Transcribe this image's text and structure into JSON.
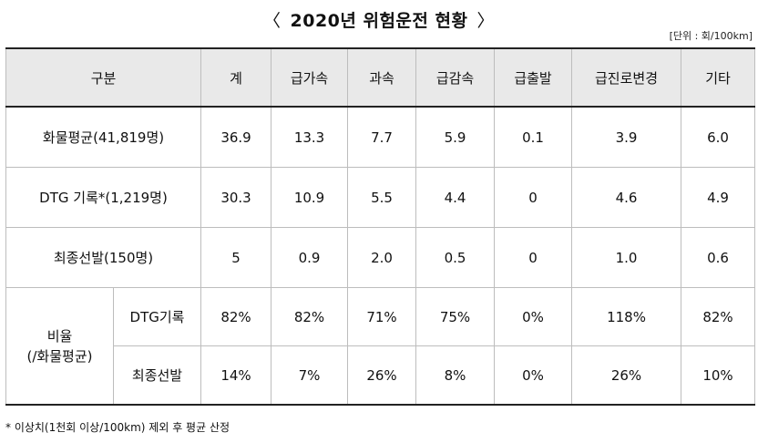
{
  "title": {
    "left_bracket": "〈",
    "text": "2020년 위험운전 현황",
    "right_bracket": "〉"
  },
  "unit": "[단위 : 회/100km]",
  "table": {
    "headers": [
      "구분",
      "계",
      "급가속",
      "과속",
      "급감속",
      "급출발",
      "급진로변경",
      "기타"
    ],
    "rows": [
      {
        "label": "화물평균(41,819명)",
        "values": [
          "36.9",
          "13.3",
          "7.7",
          "5.9",
          "0.1",
          "3.9",
          "6.0"
        ]
      },
      {
        "label": "DTG 기록*(1,219명)",
        "values": [
          "30.3",
          "10.9",
          "5.5",
          "4.4",
          "0",
          "4.6",
          "4.9"
        ]
      },
      {
        "label": "최종선발(150명)",
        "values": [
          "5",
          "0.9",
          "2.0",
          "0.5",
          "0",
          "1.0",
          "0.6"
        ]
      }
    ],
    "ratio_group_label": "비율\n(/화물평균)",
    "ratio_rows": [
      {
        "label": "DTG기록",
        "values": [
          "82%",
          "82%",
          "71%",
          "75%",
          "0%",
          "118%",
          "82%"
        ]
      },
      {
        "label": "최종선발",
        "values": [
          "14%",
          "7%",
          "26%",
          "8%",
          "0%",
          "26%",
          "10%"
        ]
      }
    ]
  },
  "footnote": "*  이상치(1천회 이상/100km)  제외  후  평균  산정"
}
